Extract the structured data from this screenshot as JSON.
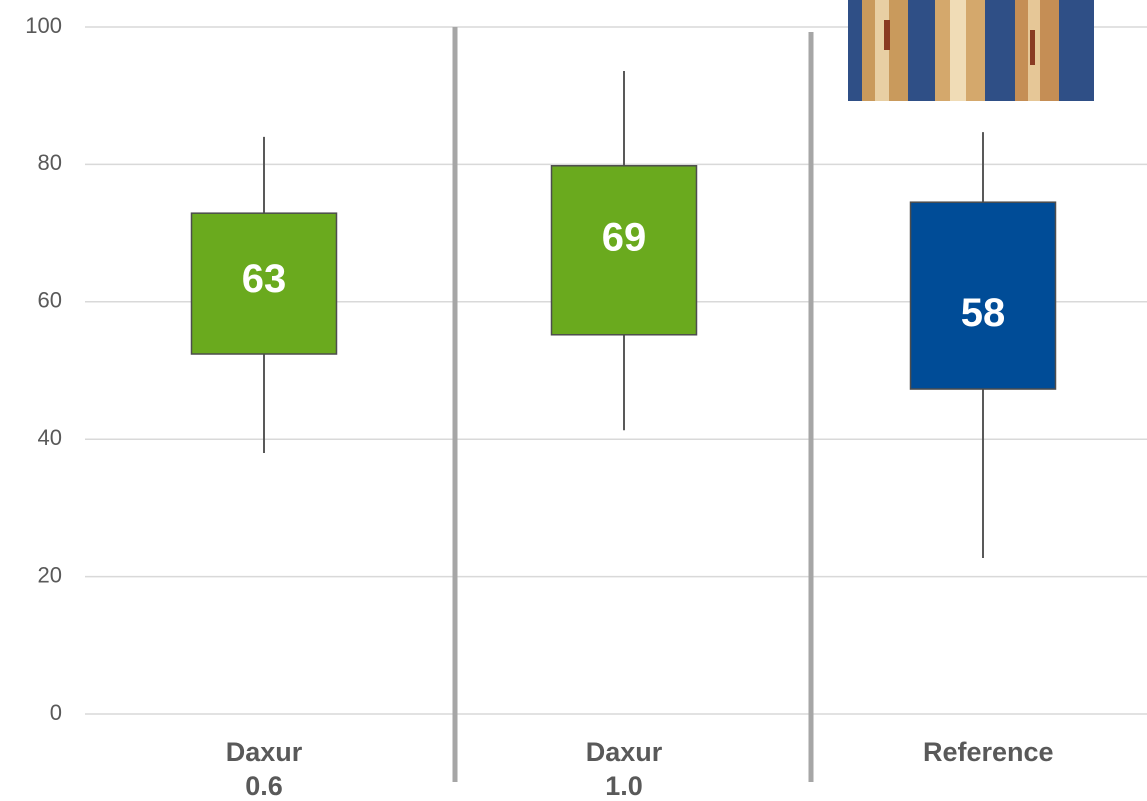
{
  "chart_data": {
    "type": "box",
    "categories": [
      "Daxur 0.6",
      "Daxur 1.0",
      "Reference"
    ],
    "colors": [
      "#6aaa1e",
      "#6aaa1e",
      "#004c97"
    ],
    "values": [
      63,
      69,
      58
    ],
    "q1": [
      52.4,
      55.2,
      47.3
    ],
    "q3": [
      72.9,
      79.8,
      74.5
    ],
    "low": [
      38,
      41.3,
      22.7
    ],
    "high": [
      84,
      93.6,
      84.7
    ],
    "ylim": [
      0,
      100
    ],
    "yticks": [
      0,
      20,
      40,
      60,
      80,
      100
    ],
    "grid": true
  }
}
